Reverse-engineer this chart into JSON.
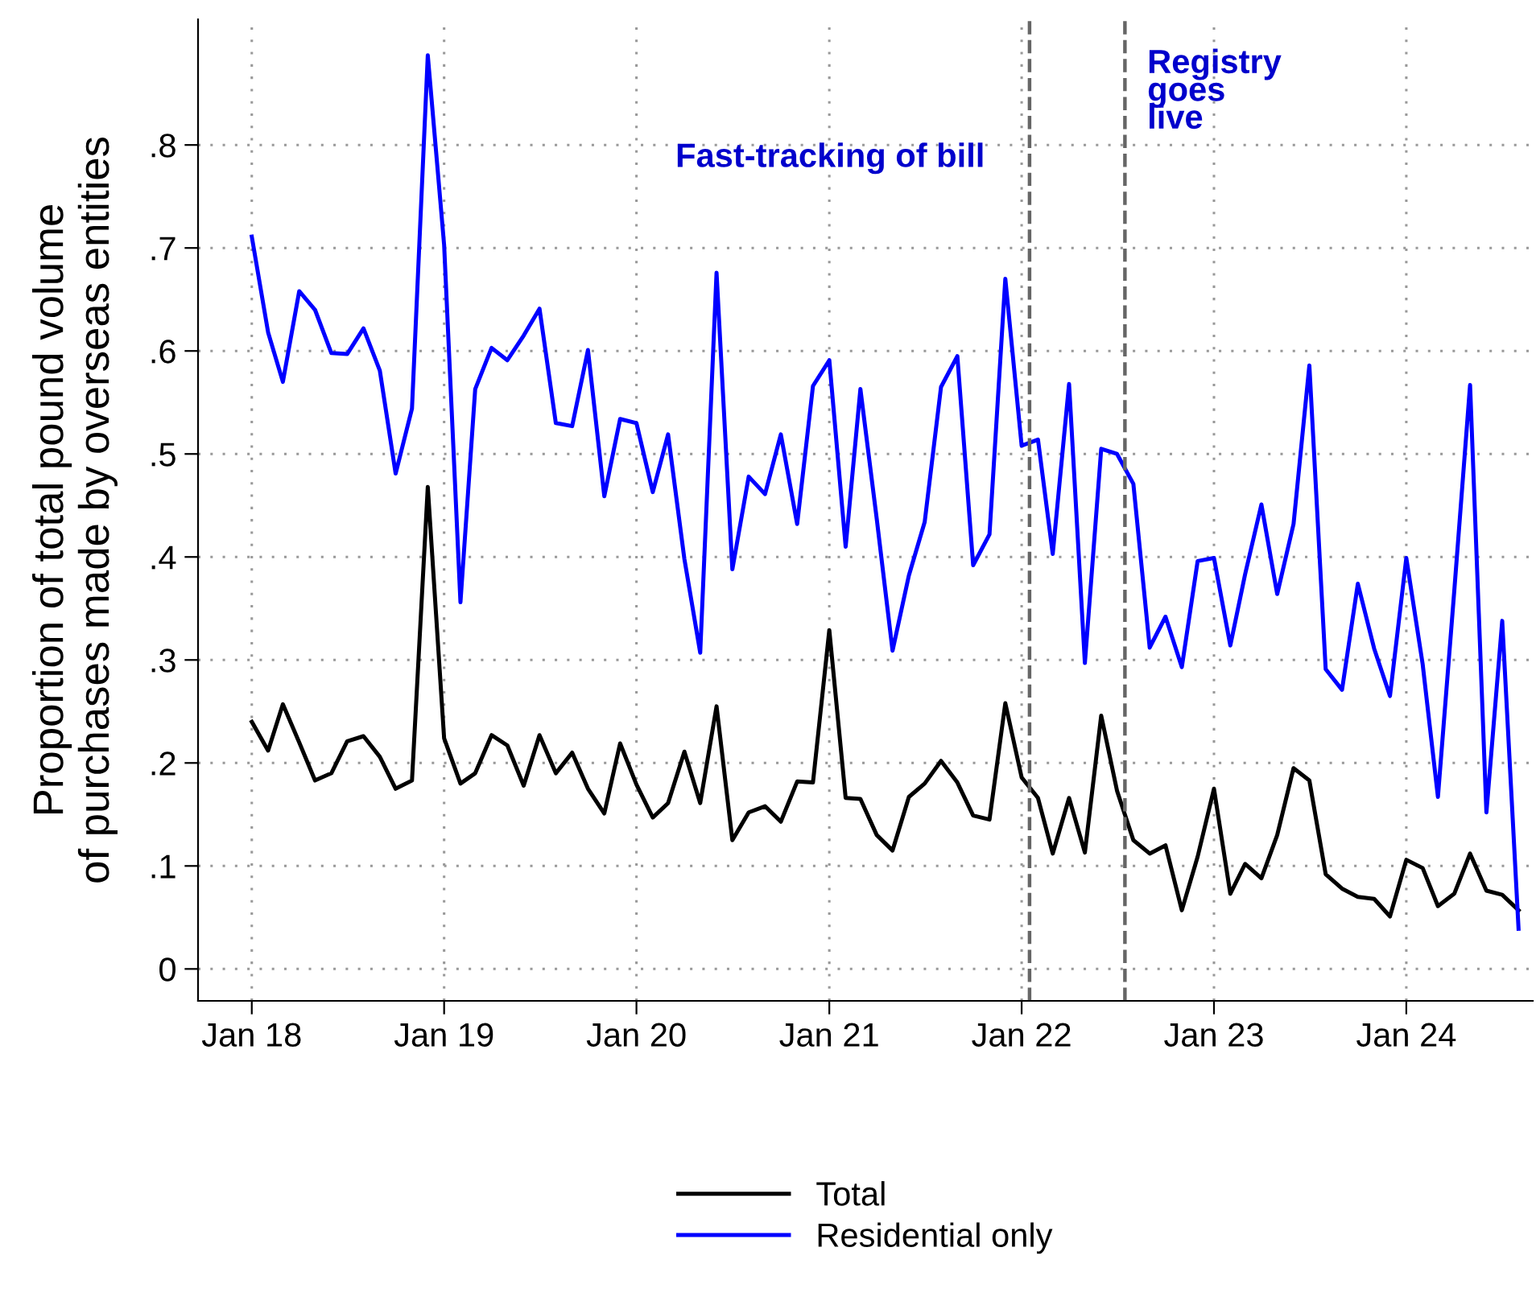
{
  "chart_data": {
    "type": "line",
    "ylabel": "Proportion of total pound volume\nof purchases made by overseas entities",
    "x": [
      "2018-01",
      "2018-02",
      "2018-03",
      "2018-04",
      "2018-05",
      "2018-06",
      "2018-07",
      "2018-08",
      "2018-09",
      "2018-10",
      "2018-11",
      "2018-12",
      "2019-01",
      "2019-02",
      "2019-03",
      "2019-04",
      "2019-05",
      "2019-06",
      "2019-07",
      "2019-08",
      "2019-09",
      "2019-10",
      "2019-11",
      "2019-12",
      "2020-01",
      "2020-02",
      "2020-03",
      "2020-04",
      "2020-05",
      "2020-06",
      "2020-07",
      "2020-08",
      "2020-09",
      "2020-10",
      "2020-11",
      "2020-12",
      "2021-01",
      "2021-02",
      "2021-03",
      "2021-04",
      "2021-05",
      "2021-06",
      "2021-07",
      "2021-08",
      "2021-09",
      "2021-10",
      "2021-11",
      "2021-12",
      "2022-01",
      "2022-02",
      "2022-03",
      "2022-04",
      "2022-05",
      "2022-06",
      "2022-07",
      "2022-08",
      "2022-09",
      "2022-10",
      "2022-11",
      "2022-12",
      "2023-01",
      "2023-02",
      "2023-03",
      "2023-04",
      "2023-05",
      "2023-06",
      "2023-07",
      "2023-08",
      "2023-09",
      "2023-10",
      "2023-11",
      "2023-12",
      "2024-01",
      "2024-02",
      "2024-03",
      "2024-04",
      "2024-05",
      "2024-06",
      "2024-07",
      "2024-08"
    ],
    "series": [
      {
        "name": "Total",
        "color": "#000000",
        "values": [
          0.24,
          0.212,
          0.257,
          0.22,
          0.183,
          0.19,
          0.221,
          0.226,
          0.206,
          0.175,
          0.183,
          0.468,
          0.224,
          0.18,
          0.19,
          0.227,
          0.217,
          0.178,
          0.227,
          0.19,
          0.21,
          0.175,
          0.151,
          0.219,
          0.179,
          0.147,
          0.161,
          0.211,
          0.161,
          0.255,
          0.125,
          0.152,
          0.158,
          0.143,
          0.182,
          0.181,
          0.329,
          0.166,
          0.165,
          0.13,
          0.115,
          0.167,
          0.18,
          0.202,
          0.181,
          0.149,
          0.145,
          0.258,
          0.186,
          0.166,
          0.112,
          0.166,
          0.113,
          0.246,
          0.173,
          0.125,
          0.112,
          0.12,
          0.057,
          0.109,
          0.175,
          0.073,
          0.102,
          0.088,
          0.13,
          0.195,
          0.183,
          0.092,
          0.078,
          0.07,
          0.068,
          0.051,
          0.106,
          0.098,
          0.061,
          0.073,
          0.112,
          0.076,
          0.072,
          0.057
        ]
      },
      {
        "name": "Residential only",
        "color": "#0000ff",
        "values": [
          0.711,
          0.618,
          0.57,
          0.658,
          0.64,
          0.598,
          0.597,
          0.622,
          0.581,
          0.481,
          0.544,
          0.887,
          0.703,
          0.356,
          0.563,
          0.603,
          0.591,
          0.615,
          0.641,
          0.53,
          0.527,
          0.601,
          0.459,
          0.534,
          0.53,
          0.463,
          0.519,
          0.398,
          0.307,
          0.676,
          0.388,
          0.478,
          0.461,
          0.519,
          0.432,
          0.566,
          0.591,
          0.41,
          0.563,
          0.437,
          0.309,
          0.382,
          0.434,
          0.565,
          0.595,
          0.392,
          0.422,
          0.67,
          0.508,
          0.514,
          0.403,
          0.568,
          0.297,
          0.505,
          0.5,
          0.471,
          0.312,
          0.342,
          0.293,
          0.396,
          0.399,
          0.314,
          0.383,
          0.451,
          0.364,
          0.432,
          0.586,
          0.291,
          0.271,
          0.374,
          0.311,
          0.265,
          0.399,
          0.296,
          0.167,
          0.367,
          0.567,
          0.152,
          0.338,
          0.039
        ]
      }
    ],
    "xlim": [
      "2017-09-21",
      "2024-08-28"
    ],
    "xticks": [
      {
        "value": "2018-01",
        "label": "Jan 18"
      },
      {
        "value": "2019-01",
        "label": "Jan 19"
      },
      {
        "value": "2020-01",
        "label": "Jan 20"
      },
      {
        "value": "2021-01",
        "label": "Jan 21"
      },
      {
        "value": "2022-01",
        "label": "Jan 22"
      },
      {
        "value": "2023-01",
        "label": "Jan 23"
      },
      {
        "value": "2024-01",
        "label": "Jan 24"
      }
    ],
    "ylim": [
      -0.031,
      0.922
    ],
    "yticks": [
      {
        "value": 0,
        "label": "0"
      },
      {
        "value": 0.1,
        "label": ".1"
      },
      {
        "value": 0.2,
        "label": ".2"
      },
      {
        "value": 0.3,
        "label": ".3"
      },
      {
        "value": 0.4,
        "label": ".4"
      },
      {
        "value": 0.5,
        "label": ".5"
      },
      {
        "value": 0.6,
        "label": ".6"
      },
      {
        "value": 0.7,
        "label": ".7"
      },
      {
        "value": 0.8,
        "label": ".8"
      }
    ],
    "ref_lines": [
      {
        "axis": "x",
        "value": "2022-01-16",
        "label": "Fast-tracking of bill",
        "color": "#666666",
        "line_style": "dashed"
      },
      {
        "axis": "x",
        "value": "2022-07-16",
        "label": "Registry\ngoes\nlive",
        "color": "#666666",
        "line_style": "dashed"
      }
    ],
    "grid": true,
    "legend": "bottom",
    "marker": "none",
    "line_style": "solid"
  }
}
